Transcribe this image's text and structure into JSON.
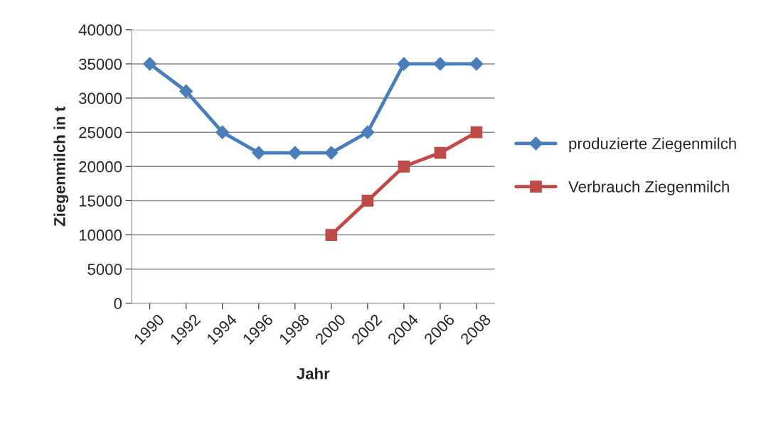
{
  "chart_data": {
    "type": "line",
    "xlabel": "Jahr",
    "ylabel": "Ziegenmilch in t",
    "categories": [
      "1990",
      "1992",
      "1994",
      "1996",
      "1998",
      "2000",
      "2002",
      "2004",
      "2006",
      "2008"
    ],
    "series": [
      {
        "name": "produzierte Ziegenmilch",
        "color": "#4a7ebb",
        "marker": "diamond",
        "values": [
          35000,
          31000,
          25000,
          22000,
          22000,
          22000,
          25000,
          35000,
          35000,
          35000
        ]
      },
      {
        "name": "Verbrauch Ziegenmilch",
        "color": "#be4b48",
        "marker": "square",
        "values": [
          null,
          null,
          null,
          null,
          null,
          10000,
          15000,
          20000,
          22000,
          25000
        ]
      }
    ],
    "ylim": [
      0,
      40000
    ],
    "yticks": [
      0,
      5000,
      10000,
      15000,
      20000,
      25000,
      30000,
      35000,
      40000
    ],
    "grid": "y",
    "legend": "right",
    "line_style": "solid"
  }
}
